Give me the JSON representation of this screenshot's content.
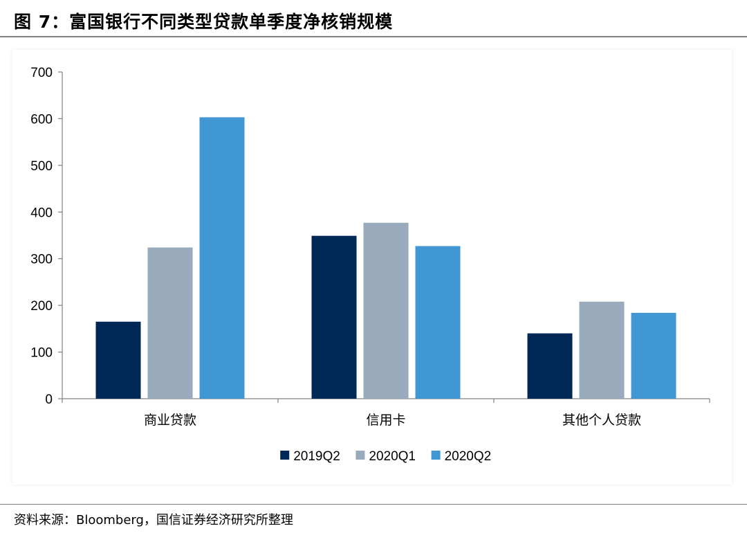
{
  "header": {
    "title": "图 7：富国银行不同类型贷款单季度净核销规模"
  },
  "footer": {
    "source": "资料来源：Bloomberg，国信证券经济研究所整理"
  },
  "chart_data": {
    "type": "bar",
    "categories": [
      "商业贷款",
      "信用卡",
      "其他个人贷款"
    ],
    "series": [
      {
        "name": "2019Q2",
        "color": "#002856",
        "values": [
          165,
          349,
          140
        ]
      },
      {
        "name": "2020Q1",
        "color": "#98aabb",
        "values": [
          324,
          377,
          208
        ]
      },
      {
        "name": "2020Q2",
        "color": "#4197d3",
        "values": [
          603,
          327,
          184
        ]
      }
    ],
    "ylim": [
      0,
      700
    ],
    "yticks": [
      0,
      100,
      200,
      300,
      400,
      500,
      600,
      700
    ],
    "legend_position": "bottom-center",
    "grid": false
  }
}
